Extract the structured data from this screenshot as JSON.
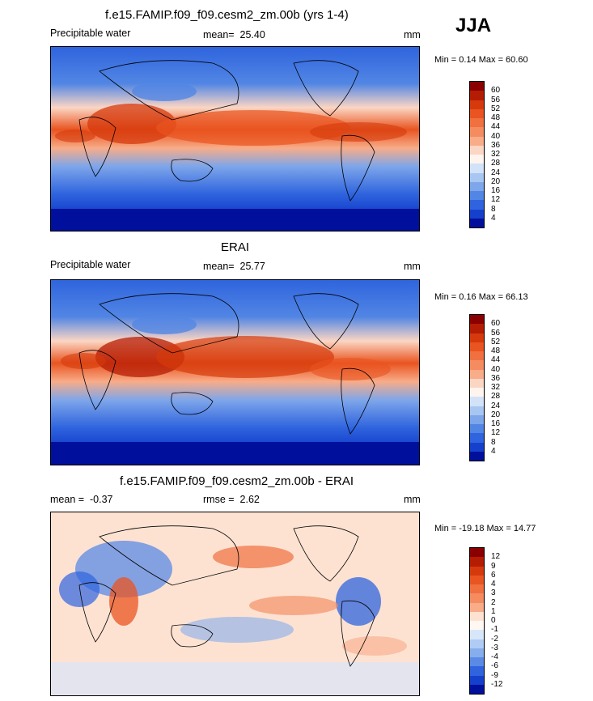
{
  "season": "JJA",
  "panels": [
    {
      "title": "f.e15.FAMIP.f09_f09.cesm2_zm.00b (yrs 1-4)",
      "variable": "Precipitable water",
      "stat_label": "mean=",
      "stat_value": "25.40",
      "units": "mm",
      "minmax": "Min =  0.14 Max =  60.60",
      "colorbar_labels": [
        "60",
        "56",
        "52",
        "48",
        "44",
        "40",
        "36",
        "32",
        "28",
        "24",
        "20",
        "16",
        "12",
        "8",
        "4"
      ],
      "colors": [
        "#8a0000",
        "#b51c04",
        "#d63a0c",
        "#e95420",
        "#f07040",
        "#f48c60",
        "#f8ac88",
        "#fbd6c4",
        "#fff4ee",
        "#d2e2f8",
        "#a8c6f2",
        "#7ea6ea",
        "#5286e4",
        "#2f64de",
        "#1540cc",
        "#00109c"
      ]
    },
    {
      "title": "ERAI",
      "variable": "Precipitable water",
      "stat_label": "mean=",
      "stat_value": "25.77",
      "units": "mm",
      "minmax": "Min =  0.16 Max =  66.13",
      "colorbar_labels": [
        "60",
        "56",
        "52",
        "48",
        "44",
        "40",
        "36",
        "32",
        "28",
        "24",
        "20",
        "16",
        "12",
        "8",
        "4"
      ],
      "colors": [
        "#8a0000",
        "#b51c04",
        "#d63a0c",
        "#e95420",
        "#f07040",
        "#f48c60",
        "#f8ac88",
        "#fbd6c4",
        "#fff4ee",
        "#d2e2f8",
        "#a8c6f2",
        "#7ea6ea",
        "#5286e4",
        "#2f64de",
        "#1540cc",
        "#00109c"
      ]
    },
    {
      "title": "f.e15.FAMIP.f09_f09.cesm2_zm.00b - ERAI",
      "variable": "",
      "stat_label": "mean =",
      "stat_value": "-0.37",
      "rmse_label": "rmse =",
      "rmse_value": "2.62",
      "units": "mm",
      "minmax": "Min = -19.18 Max =  14.77",
      "colorbar_labels": [
        "12",
        "9",
        "6",
        "4",
        "3",
        "2",
        "1",
        "0",
        "-1",
        "-2",
        "-3",
        "-4",
        "-6",
        "-9",
        "-12"
      ],
      "colors": [
        "#8a0000",
        "#b51c04",
        "#d63a0c",
        "#e95420",
        "#f07040",
        "#f48c60",
        "#f8ac88",
        "#fde2d2",
        "#fff8f2",
        "#d8e6fa",
        "#b0ccf4",
        "#86aeec",
        "#5a8ae6",
        "#2f64de",
        "#1540cc",
        "#00109c"
      ]
    }
  ]
}
